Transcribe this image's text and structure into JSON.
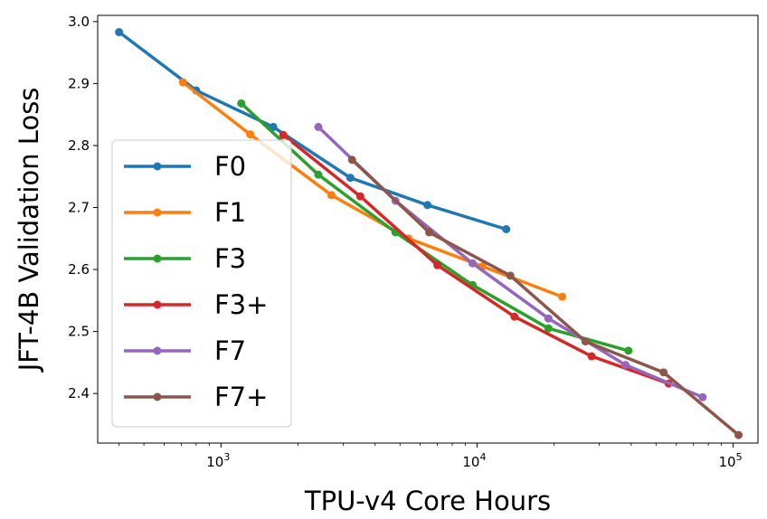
{
  "chart_data": {
    "type": "line",
    "title": "",
    "xlabel": "TPU-v4 Core Hours",
    "ylabel": "JFT-4B Validation Loss",
    "xscale": "log",
    "xlim": [
      330,
      125000
    ],
    "ylim": [
      2.32,
      3.01
    ],
    "x_ticks": [
      {
        "value": 1000,
        "base": "10",
        "exp": "3"
      },
      {
        "value": 10000,
        "base": "10",
        "exp": "4"
      },
      {
        "value": 100000,
        "base": "10",
        "exp": "5"
      }
    ],
    "y_ticks": [
      {
        "value": 2.4,
        "label": "2.4"
      },
      {
        "value": 2.5,
        "label": "2.5"
      },
      {
        "value": 2.6,
        "label": "2.6"
      },
      {
        "value": 2.7,
        "label": "2.7"
      },
      {
        "value": 2.8,
        "label": "2.8"
      },
      {
        "value": 2.9,
        "label": "2.9"
      },
      {
        "value": 3.0,
        "label": "3.0"
      }
    ],
    "grid": false,
    "legend_position": "center-left",
    "series": [
      {
        "name": "F0",
        "color": "#1f77b4",
        "x": [
          400,
          800,
          1600,
          3200,
          6400,
          13000
        ],
        "y": [
          2.983,
          2.889,
          2.83,
          2.748,
          2.704,
          2.665
        ]
      },
      {
        "name": "F1",
        "color": "#ff7f0e",
        "x": [
          710,
          1300,
          2700,
          5400,
          10500,
          21500
        ],
        "y": [
          2.902,
          2.818,
          2.72,
          2.65,
          2.605,
          2.556
        ]
      },
      {
        "name": "F3",
        "color": "#2ca02c",
        "x": [
          1200,
          2400,
          4800,
          9600,
          19000,
          39000
        ],
        "y": [
          2.868,
          2.753,
          2.66,
          2.575,
          2.505,
          2.469
        ]
      },
      {
        "name": "F3+",
        "color": "#d62728",
        "x": [
          1750,
          3500,
          7000,
          14000,
          28000,
          56000
        ],
        "y": [
          2.817,
          2.718,
          2.607,
          2.524,
          2.46,
          2.416
        ]
      },
      {
        "name": "F7",
        "color": "#9467bd",
        "x": [
          2400,
          4800,
          9600,
          19000,
          38000,
          76000
        ],
        "y": [
          2.83,
          2.711,
          2.61,
          2.521,
          2.446,
          2.394
        ]
      },
      {
        "name": "F7+",
        "color": "#8c564b",
        "x": [
          3250,
          6500,
          13500,
          26500,
          53500,
          105000
        ],
        "y": [
          2.777,
          2.66,
          2.59,
          2.484,
          2.434,
          2.333
        ]
      }
    ]
  }
}
